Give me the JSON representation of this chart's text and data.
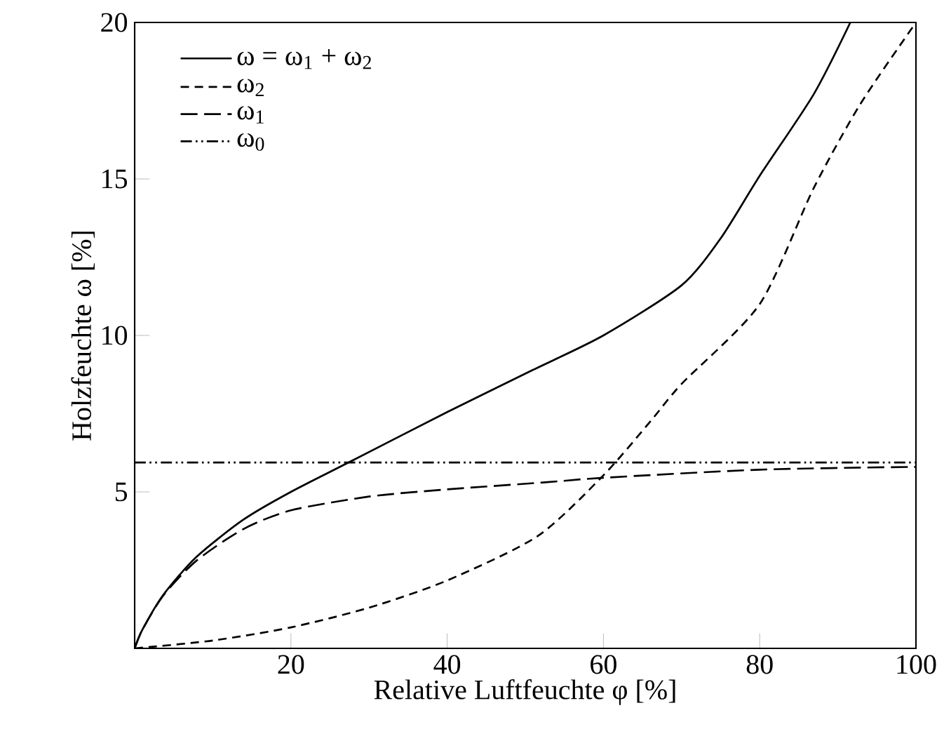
{
  "chart_data": {
    "type": "line",
    "xlabel": "Relative Luftfeuchte φ [%]",
    "ylabel": "Holzfeuchte ω [%]",
    "xlim": [
      0,
      100
    ],
    "ylim": [
      0,
      20
    ],
    "xticks": [
      20,
      40,
      60,
      80,
      100
    ],
    "yticks": [
      5,
      10,
      15,
      20
    ],
    "grid": false,
    "legend": "top left",
    "marker": "none",
    "series": [
      {
        "name": "ω = ω$_{1}$ + ω$_{2}$",
        "color": "#000000",
        "line_style": "solid",
        "x": [
          0,
          1,
          3.7,
          7.9,
          13.9,
          20,
          27.7,
          40,
          51,
          60,
          70,
          75,
          80,
          86.9,
          91.6
        ],
        "values": [
          0,
          0.6,
          1.72,
          2.92,
          4.11,
          5.0,
          5.98,
          7.55,
          8.9,
          10.0,
          11.6,
          13.1,
          15.1,
          17.7,
          20
        ]
      },
      {
        "name": "ω$_{2}$",
        "color": "#000000",
        "line_style": "dashed",
        "x": [
          0,
          10,
          20,
          30,
          40,
          51.6,
          60,
          66,
          70,
          80,
          86.9,
          92.9,
          100
        ],
        "values": [
          0,
          0.25,
          0.67,
          1.3,
          2.17,
          3.59,
          5.53,
          7.25,
          8.45,
          11.0,
          14.7,
          17.4,
          20
        ]
      },
      {
        "name": "ω$_{1}$",
        "color": "#000000",
        "line_style": "long dashed",
        "x": [
          0,
          1,
          3.7,
          7.9,
          13.9,
          20,
          30,
          40,
          52.8,
          60,
          80,
          100
        ],
        "values": [
          0,
          0.6,
          1.7,
          2.8,
          3.81,
          4.41,
          4.85,
          5.08,
          5.31,
          5.45,
          5.71,
          5.8
        ]
      },
      {
        "name": "ω$_{0}$",
        "color": "#000000",
        "line_style": "dash dot dot",
        "x": [
          0,
          100
        ],
        "values": [
          5.94,
          5.94
        ]
      }
    ]
  }
}
